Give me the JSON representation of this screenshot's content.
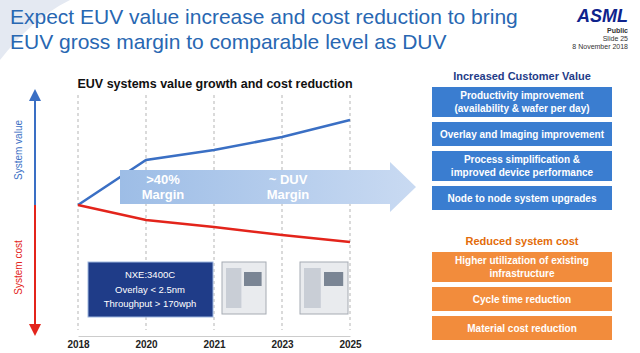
{
  "chart_data": {
    "type": "line",
    "title": "EUV systems value growth and cost reduction",
    "categories": [
      "2018",
      "2020",
      "2021",
      "2023",
      "2025"
    ],
    "series": [
      {
        "name": "System value",
        "color": "#3a6fc4",
        "values": [
          0,
          45,
          55,
          68,
          85
        ]
      },
      {
        "name": "System cost",
        "color": "#e3241b",
        "values": [
          0,
          -15,
          -22,
          -30,
          -37
        ]
      }
    ],
    "ylim": [
      -125,
      110
    ],
    "tick_labels": "x",
    "grid": true,
    "annotations": [
      [
        ">40%",
        "Margin"
      ],
      [
        "~ DUV",
        "Margin"
      ]
    ],
    "info_box": [
      "NXE:3400C",
      "Overlay < 2.5nm",
      "Throughput > 170wph"
    ]
  },
  "slide": {
    "title": [
      "Expect EUV value increase and cost reduction to bring",
      "EUV gross margin to comparable level as DUV"
    ],
    "logo": "ASML",
    "meta": [
      "Public",
      "Slide 25",
      "8 November 2018"
    ],
    "panels": [
      {
        "heading": "Increased Customer Value",
        "items": [
          [
            "Productivity improvement",
            "(availability & wafer per day)"
          ],
          [
            "Overlay and Imaging improvement"
          ],
          [
            "Process simplification &",
            "improved device performance"
          ],
          [
            "Node to node system upgrades"
          ]
        ]
      },
      {
        "heading": "Reduced system cost",
        "items": [
          [
            "Higher utilization of existing",
            "infrastructure"
          ],
          [
            "Cycle time reduction"
          ],
          [
            "Material cost reduction"
          ]
        ]
      }
    ]
  }
}
